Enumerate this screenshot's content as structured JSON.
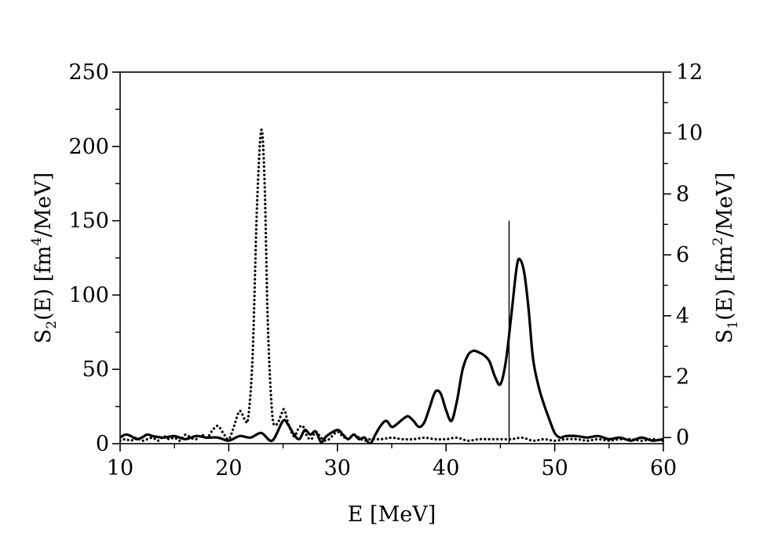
{
  "chart_data": {
    "type": "line",
    "xlabel": "E [MeV]",
    "ylabel_left": {
      "base": "S",
      "sub": "2",
      "mid": "(E) [fm",
      "sup": "4",
      "tail": "/MeV]"
    },
    "ylabel_right": {
      "base": "S",
      "sub": "1",
      "mid": "(E) [fm",
      "sup": "2",
      "tail": "/MeV]"
    },
    "xlim": [
      10,
      60
    ],
    "ylim_left": [
      0,
      250
    ],
    "ylim_right": [
      -0.2,
      12
    ],
    "x_ticks": [
      "10",
      "20",
      "30",
      "40",
      "50",
      "60"
    ],
    "y_left_ticks": [
      "0",
      "50",
      "100",
      "150",
      "200",
      "250"
    ],
    "y_right_ticks": [
      "0",
      "2",
      "4",
      "6",
      "8",
      "10",
      "12"
    ],
    "grid": false,
    "threshold_line": {
      "x": 45.8,
      "y_top_left": 150
    },
    "series": [
      {
        "line_style": "dotted",
        "axis": "left",
        "points": [
          [
            10,
            2
          ],
          [
            10.5,
            3
          ],
          [
            11,
            2
          ],
          [
            11.5,
            4
          ],
          [
            12,
            2
          ],
          [
            12.5,
            3
          ],
          [
            13,
            4
          ],
          [
            13.5,
            2
          ],
          [
            14,
            5
          ],
          [
            14.5,
            3
          ],
          [
            15,
            4
          ],
          [
            15.5,
            2
          ],
          [
            16,
            6
          ],
          [
            16.5,
            4
          ],
          [
            17,
            3
          ],
          [
            17.5,
            6
          ],
          [
            18,
            4
          ],
          [
            18.5,
            9
          ],
          [
            19,
            12
          ],
          [
            19.5,
            7
          ],
          [
            20,
            3
          ],
          [
            20.5,
            12
          ],
          [
            21,
            22
          ],
          [
            21.5,
            16
          ],
          [
            21.8,
            18
          ],
          [
            22.2,
            60
          ],
          [
            22.6,
            160
          ],
          [
            23,
            211
          ],
          [
            23.3,
            175
          ],
          [
            23.6,
            80
          ],
          [
            24,
            20
          ],
          [
            24.4,
            13
          ],
          [
            24.8,
            19
          ],
          [
            25.1,
            23
          ],
          [
            25.5,
            13
          ],
          [
            26,
            5
          ],
          [
            26.4,
            10
          ],
          [
            26.8,
            12
          ],
          [
            27.2,
            5
          ],
          [
            27.6,
            3
          ],
          [
            28,
            8
          ],
          [
            28.5,
            4
          ],
          [
            29,
            2
          ],
          [
            29.5,
            5
          ],
          [
            30,
            8
          ],
          [
            30.5,
            5
          ],
          [
            31,
            3
          ],
          [
            31.5,
            6
          ],
          [
            32,
            4
          ],
          [
            32.5,
            2
          ],
          [
            33,
            3
          ],
          [
            34,
            3
          ],
          [
            35,
            4
          ],
          [
            36,
            3
          ],
          [
            37,
            3
          ],
          [
            38,
            4
          ],
          [
            39,
            3
          ],
          [
            40,
            3
          ],
          [
            41,
            4
          ],
          [
            42,
            2
          ],
          [
            43,
            3
          ],
          [
            44,
            3
          ],
          [
            45,
            3
          ],
          [
            46,
            3
          ],
          [
            47,
            4
          ],
          [
            48,
            2
          ],
          [
            49,
            3
          ],
          [
            50,
            2
          ],
          [
            51,
            3
          ],
          [
            52,
            3
          ],
          [
            53,
            2
          ],
          [
            54,
            3
          ],
          [
            55,
            2
          ],
          [
            56,
            3
          ],
          [
            57,
            3
          ],
          [
            58,
            2
          ],
          [
            59,
            3
          ],
          [
            60,
            2
          ]
        ]
      },
      {
        "line_style": "solid",
        "axis": "right",
        "points": [
          [
            10,
            0
          ],
          [
            10.5,
            0.1
          ],
          [
            11,
            0.05
          ],
          [
            11.5,
            -0.05
          ],
          [
            12,
            0
          ],
          [
            12.5,
            0.1
          ],
          [
            13,
            0.05
          ],
          [
            14,
            0
          ],
          [
            15,
            0.05
          ],
          [
            16,
            -0.05
          ],
          [
            17,
            0.05
          ],
          [
            18,
            0
          ],
          [
            19,
            0
          ],
          [
            20,
            -0.1
          ],
          [
            21,
            0.05
          ],
          [
            22,
            0
          ],
          [
            23,
            0.15
          ],
          [
            24,
            -0.1
          ],
          [
            25,
            0.55
          ],
          [
            25.5,
            0.4
          ],
          [
            26,
            0.1
          ],
          [
            26.5,
            -0.05
          ],
          [
            27,
            0.25
          ],
          [
            27.5,
            0.1
          ],
          [
            28,
            0.2
          ],
          [
            28.5,
            -0.15
          ],
          [
            29,
            0.05
          ],
          [
            30,
            0.25
          ],
          [
            30.5,
            0.1
          ],
          [
            31,
            -0.05
          ],
          [
            31.5,
            0.1
          ],
          [
            32,
            -0.05
          ],
          [
            32.5,
            0
          ],
          [
            33,
            -0.2
          ],
          [
            33.5,
            0.1
          ],
          [
            34,
            0.4
          ],
          [
            34.5,
            0.55
          ],
          [
            35,
            0.35
          ],
          [
            35.5,
            0.45
          ],
          [
            36,
            0.6
          ],
          [
            36.5,
            0.7
          ],
          [
            37,
            0.55
          ],
          [
            37.5,
            0.35
          ],
          [
            38,
            0.5
          ],
          [
            38.5,
            1.0
          ],
          [
            39,
            1.5
          ],
          [
            39.5,
            1.45
          ],
          [
            40,
            0.9
          ],
          [
            40.5,
            0.55
          ],
          [
            41,
            1.2
          ],
          [
            41.5,
            2.2
          ],
          [
            42,
            2.7
          ],
          [
            42.5,
            2.85
          ],
          [
            43,
            2.8
          ],
          [
            43.5,
            2.7
          ],
          [
            44,
            2.5
          ],
          [
            44.5,
            2.0
          ],
          [
            45,
            1.75
          ],
          [
            45.5,
            2.5
          ],
          [
            46,
            4.0
          ],
          [
            46.5,
            5.6
          ],
          [
            46.8,
            5.85
          ],
          [
            47.2,
            5.4
          ],
          [
            47.6,
            4.2
          ],
          [
            48,
            2.6
          ],
          [
            48.5,
            1.7
          ],
          [
            49,
            1.1
          ],
          [
            49.5,
            0.6
          ],
          [
            50,
            0.15
          ],
          [
            50.5,
            0
          ],
          [
            51,
            0.05
          ],
          [
            52,
            0.05
          ],
          [
            53,
            0
          ],
          [
            54,
            0.05
          ],
          [
            55,
            -0.05
          ],
          [
            56,
            0
          ],
          [
            57,
            -0.1
          ],
          [
            58,
            0
          ],
          [
            59,
            -0.1
          ],
          [
            60,
            -0.05
          ]
        ]
      }
    ]
  }
}
